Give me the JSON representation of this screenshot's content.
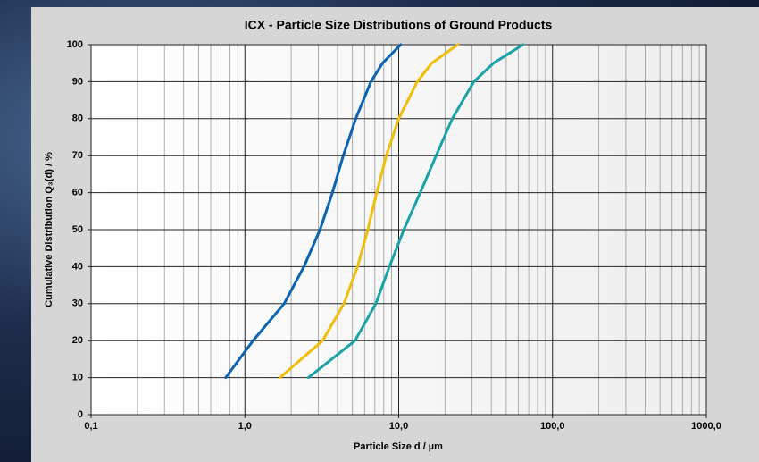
{
  "chart_data": {
    "type": "line",
    "title": "ICX - Particle Size Distributions of Ground Products",
    "x_label": "Particle Size d / µm",
    "y_label": "Cumulative Distribution Q₃(d) / %",
    "x_log": true,
    "xlim": [
      0.1,
      1000
    ],
    "ylim": [
      0,
      100
    ],
    "xticks": [
      {
        "value": 0.1,
        "label": "0,1"
      },
      {
        "value": 1,
        "label": "1,0"
      },
      {
        "value": 10,
        "label": "10,0"
      },
      {
        "value": 100,
        "label": "100,0"
      },
      {
        "value": 1000,
        "label": "1000,0"
      }
    ],
    "x_minor_ticks": [
      0.2,
      0.3,
      0.4,
      0.5,
      0.6,
      0.7,
      0.8,
      0.9,
      2,
      3,
      4,
      5,
      6,
      7,
      8,
      9,
      20,
      30,
      40,
      50,
      60,
      70,
      80,
      90,
      200,
      300,
      400,
      500,
      600,
      700,
      800,
      900
    ],
    "yticks": [
      0,
      10,
      20,
      30,
      40,
      50,
      60,
      70,
      80,
      90,
      100
    ],
    "grid": true,
    "series": [
      {
        "color": "#0a64b4",
        "x": [
          0.75,
          1.13,
          1.8,
          2.42,
          3.08,
          3.71,
          4.36,
          5.26,
          6.6,
          7.85,
          10.3
        ],
        "values": [
          10,
          20,
          30,
          40,
          50,
          60,
          70,
          80,
          90,
          95,
          100
        ]
      },
      {
        "color": "#f2bc0a",
        "x": [
          1.69,
          3.2,
          4.4,
          5.4,
          6.3,
          7.2,
          8.3,
          10,
          13.2,
          16.4,
          24.2
        ],
        "values": [
          10,
          20,
          30,
          40,
          50,
          60,
          70,
          80,
          90,
          95,
          100
        ]
      },
      {
        "color": "#17a3a8",
        "x": [
          2.59,
          5.2,
          7.1,
          8.7,
          10.8,
          13.8,
          17.5,
          22.3,
          30.8,
          41.3,
          64.3
        ],
        "values": [
          10,
          20,
          30,
          40,
          50,
          60,
          70,
          80,
          90,
          95,
          100
        ]
      }
    ]
  }
}
